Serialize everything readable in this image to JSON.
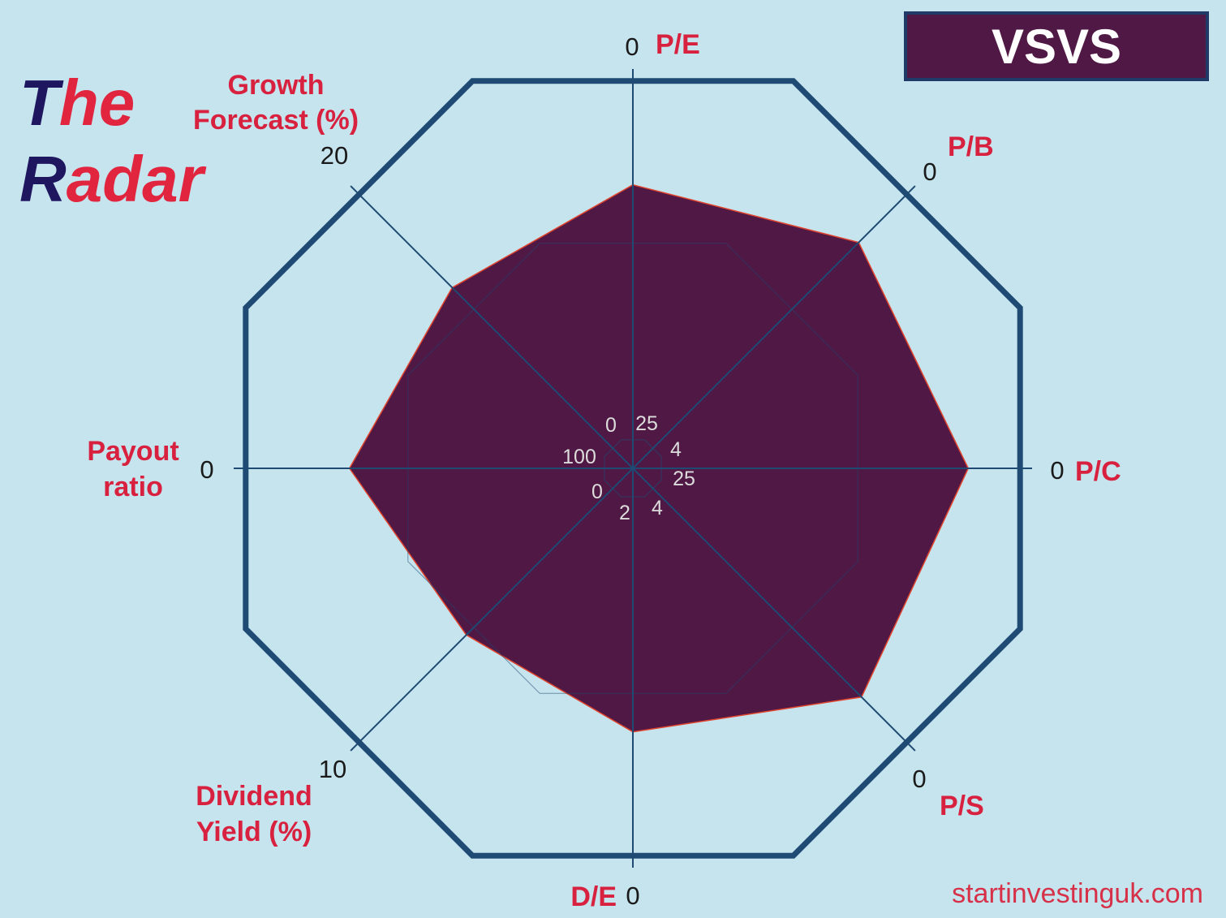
{
  "brand": {
    "word1_first": "T",
    "word1_rest": "he",
    "word2_first": "R",
    "word2_rest": "adar"
  },
  "ticker": "VSVS",
  "site": "startinvestinguk.com",
  "colors": {
    "background": "#c6e4ee",
    "frame": "#1f4a73",
    "polygon_fill": "#501844",
    "polygon_stroke": "#e2452f",
    "label_red": "#d8213f",
    "brand_dark": "#1f1660"
  },
  "chart_data": {
    "type": "radar",
    "title": "The Radar",
    "axes": [
      {
        "id": "pe",
        "label": [
          "P/E"
        ],
        "outer_tick": "0",
        "inner_tick": "25",
        "value": 0.71
      },
      {
        "id": "pb",
        "label": [
          "P/B"
        ],
        "outer_tick": "0",
        "inner_tick": "4",
        "value": 0.8
      },
      {
        "id": "pc",
        "label": [
          "P/C"
        ],
        "outer_tick": "0",
        "inner_tick": "25",
        "value": 0.84
      },
      {
        "id": "ps",
        "label": [
          "P/S"
        ],
        "outer_tick": "0",
        "inner_tick": "4",
        "value": 0.81
      },
      {
        "id": "de",
        "label": [
          "D/E"
        ],
        "outer_tick": "0",
        "inner_tick": "2",
        "value": 0.66
      },
      {
        "id": "dy",
        "label": [
          "Dividend",
          "Yield (%)"
        ],
        "outer_tick": "10",
        "inner_tick": "0",
        "value": 0.59
      },
      {
        "id": "po",
        "label": [
          "Payout",
          "ratio"
        ],
        "outer_tick": "0",
        "inner_tick": "100",
        "value": 0.71
      },
      {
        "id": "gf",
        "label": [
          "Growth",
          "Forecast (%)"
        ],
        "outer_tick": "20",
        "inner_tick": "0",
        "value": 0.64
      }
    ]
  }
}
